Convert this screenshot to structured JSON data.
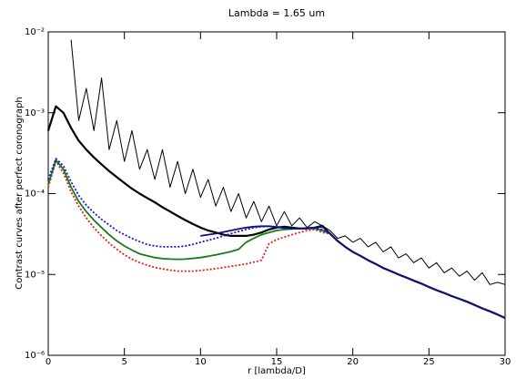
{
  "chart_data": {
    "type": "line",
    "title": "Lambda = 1.65 um",
    "xlabel": "r [lambda/D]",
    "ylabel": "Contrast curves after perfect coronograph",
    "log_y": true,
    "xlim": [
      0,
      30
    ],
    "xticks": [
      0,
      5,
      10,
      15,
      20,
      25,
      30
    ],
    "ylim": [
      1e-06,
      0.01
    ],
    "yticks": [
      {
        "value": 1e-06,
        "label": "10⁻⁶"
      },
      {
        "value": 1e-05,
        "label": "10⁻⁵"
      },
      {
        "value": 0.0001,
        "label": "10⁻⁴"
      },
      {
        "value": 0.001,
        "label": "10⁻³"
      },
      {
        "value": 0.01,
        "label": "10⁻²"
      }
    ],
    "x": [
      0,
      0.5,
      1,
      1.5,
      2,
      2.5,
      3,
      3.5,
      4,
      4.5,
      5,
      5.5,
      6,
      6.5,
      7,
      7.5,
      8,
      8.5,
      9,
      9.5,
      10,
      10.5,
      11,
      11.5,
      12,
      12.5,
      13,
      13.5,
      14,
      14.5,
      15,
      15.5,
      16,
      16.5,
      17,
      17.5,
      18,
      18.5,
      19,
      19.5,
      20,
      20.5,
      21,
      21.5,
      22,
      22.5,
      23,
      23.5,
      24,
      24.5,
      25,
      25.5,
      26,
      26.5,
      27,
      27.5,
      28,
      28.5,
      29,
      29.5,
      30
    ],
    "series": [
      {
        "color": "#000000",
        "width": 1,
        "dash": "solid",
        "values": [
          null,
          null,
          null,
          0.008,
          0.0008,
          0.002,
          0.0006,
          0.0027,
          0.00035,
          0.0008,
          0.00025,
          0.0006,
          0.0002,
          0.00035,
          0.00015,
          0.00035,
          0.00012,
          0.00025,
          0.0001,
          0.0002,
          9e-05,
          0.00015,
          7e-05,
          0.00012,
          6e-05,
          0.0001,
          5e-05,
          8e-05,
          4.5e-05,
          7e-05,
          4e-05,
          6e-05,
          4e-05,
          5e-05,
          3.8e-05,
          4.5e-05,
          4e-05,
          3.5e-05,
          2.8e-05,
          3e-05,
          2.5e-05,
          2.8e-05,
          2.2e-05,
          2.5e-05,
          1.9e-05,
          2.2e-05,
          1.6e-05,
          1.8e-05,
          1.4e-05,
          1.6e-05,
          1.2e-05,
          1.4e-05,
          1.05e-05,
          1.2e-05,
          9.5e-06,
          1.1e-05,
          8.5e-06,
          1.05e-05,
          7.5e-06,
          8e-06,
          7.5e-06
        ]
      },
      {
        "color": "#000000",
        "width": 2.2,
        "dash": "solid",
        "values": [
          0.0006,
          0.0012,
          0.001,
          0.00065,
          0.00045,
          0.00035,
          0.00028,
          0.00023,
          0.00019,
          0.00016,
          0.000135,
          0.000115,
          0.0001,
          8.8e-05,
          7.8e-05,
          6.8e-05,
          6e-05,
          5.3e-05,
          4.7e-05,
          4.2e-05,
          3.8e-05,
          3.5e-05,
          3.3e-05,
          3.1e-05,
          3e-05,
          3e-05,
          3e-05,
          3.1e-05,
          3.3e-05,
          3.6e-05,
          3.8e-05,
          3.9e-05,
          3.8e-05,
          3.7e-05,
          3.7e-05,
          3.8e-05,
          4e-05,
          3.2e-05,
          2.6e-05,
          2.2e-05,
          1.9e-05,
          1.7e-05,
          1.5e-05,
          1.35e-05,
          1.2e-05,
          1.1e-05,
          1e-05,
          9.2e-06,
          8.4e-06,
          7.7e-06,
          7e-06,
          6.4e-06,
          5.9e-06,
          5.4e-06,
          5e-06,
          4.6e-06,
          4.2e-06,
          3.8e-06,
          3.5e-06,
          3.2e-06,
          2.9e-06
        ]
      },
      {
        "color": "#e0201b",
        "width": 1.8,
        "dash": "dotted",
        "values": [
          0.00012,
          0.00025,
          0.00018,
          0.000105,
          7e-05,
          5e-05,
          3.8e-05,
          3e-05,
          2.45e-05,
          2.05e-05,
          1.75e-05,
          1.55e-05,
          1.4e-05,
          1.3e-05,
          1.22e-05,
          1.17e-05,
          1.13e-05,
          1.1e-05,
          1.1e-05,
          1.1e-05,
          1.12e-05,
          1.15e-05,
          1.18e-05,
          1.22e-05,
          1.26e-05,
          1.3e-05,
          1.35e-05,
          1.42e-05,
          1.5e-05,
          2.4e-05,
          2.7e-05,
          2.9e-05,
          3.1e-05,
          3.3e-05,
          3.5e-05,
          3.6e-05,
          3.3e-05,
          3.2e-05,
          2.6e-05,
          2.2e-05,
          1.9e-05,
          1.7e-05,
          1.5e-05,
          1.35e-05,
          1.2e-05,
          1.1e-05,
          1e-05,
          9.2e-06,
          8.4e-06,
          7.7e-06,
          7e-06,
          6.4e-06,
          5.9e-06,
          5.4e-06,
          5e-06,
          4.6e-06,
          4.2e-06,
          3.8e-06,
          3.5e-06,
          3.2e-06,
          2.9e-06
        ]
      },
      {
        "color": "#1a7a1a",
        "width": 1.8,
        "dash": "solid",
        "values": [
          0.00013,
          0.00026,
          0.0002,
          0.00012,
          8e-05,
          6e-05,
          4.7e-05,
          3.8e-05,
          3.1e-05,
          2.6e-05,
          2.25e-05,
          2e-05,
          1.8e-05,
          1.7e-05,
          1.62e-05,
          1.57e-05,
          1.55e-05,
          1.54e-05,
          1.55e-05,
          1.58e-05,
          1.62e-05,
          1.68e-05,
          1.75e-05,
          1.83e-05,
          1.92e-05,
          2.05e-05,
          2.5e-05,
          2.8e-05,
          3.1e-05,
          3.3e-05,
          3.5e-05,
          3.6e-05,
          3.65e-05,
          3.7e-05,
          3.7e-05,
          3.7e-05,
          3.5e-05,
          3.2e-05,
          2.6e-05,
          2.2e-05,
          1.9e-05,
          1.7e-05,
          1.5e-05,
          1.35e-05,
          1.2e-05,
          1.1e-05,
          1e-05,
          9.2e-06,
          8.4e-06,
          7.7e-06,
          7e-06,
          6.4e-06,
          5.9e-06,
          5.4e-06,
          5e-06,
          4.6e-06,
          4.2e-06,
          3.8e-06,
          3.5e-06,
          3.2e-06,
          2.9e-06
        ]
      },
      {
        "color": "#1515d0",
        "width": 1.8,
        "dash": "dotted",
        "values": [
          0.00015,
          0.00027,
          0.00022,
          0.00014,
          9.5e-05,
          7.2e-05,
          5.8e-05,
          4.8e-05,
          4.1e-05,
          3.5e-05,
          3.1e-05,
          2.8e-05,
          2.55e-05,
          2.35e-05,
          2.25e-05,
          2.2e-05,
          2.2e-05,
          2.2e-05,
          2.25e-05,
          2.35e-05,
          2.5e-05,
          2.65e-05,
          2.8e-05,
          3e-05,
          3.2e-05,
          3.4e-05,
          3.6e-05,
          3.8e-05,
          3.9e-05,
          3.95e-05,
          3.9e-05,
          3.8e-05,
          3.7e-05,
          3.7e-05,
          3.7e-05,
          3.75e-05,
          3.6e-05,
          3.2e-05,
          2.6e-05,
          2.2e-05,
          1.9e-05,
          1.7e-05,
          1.5e-05,
          1.35e-05,
          1.2e-05,
          1.1e-05,
          1e-05,
          9.2e-06,
          8.4e-06,
          7.7e-06,
          7e-06,
          6.4e-06,
          5.9e-06,
          5.4e-06,
          5e-06,
          4.6e-06,
          4.2e-06,
          3.8e-06,
          3.5e-06,
          3.2e-06,
          2.9e-06
        ]
      },
      {
        "color": "#10107a",
        "width": 1.8,
        "dash": "solid",
        "values": [
          null,
          null,
          null,
          null,
          null,
          null,
          null,
          null,
          null,
          null,
          null,
          null,
          null,
          null,
          null,
          null,
          null,
          null,
          null,
          null,
          3e-05,
          3.1e-05,
          3.2e-05,
          3.35e-05,
          3.5e-05,
          3.65e-05,
          3.8e-05,
          3.9e-05,
          3.95e-05,
          3.95e-05,
          3.85e-05,
          3.75e-05,
          3.7e-05,
          3.7e-05,
          3.75e-05,
          3.8e-05,
          3.9e-05,
          3.2e-05,
          2.6e-05,
          2.2e-05,
          1.9e-05,
          1.7e-05,
          1.5e-05,
          1.35e-05,
          1.2e-05,
          1.1e-05,
          1e-05,
          9.2e-06,
          8.4e-06,
          7.7e-06,
          7e-06,
          6.4e-06,
          5.9e-06,
          5.4e-06,
          5e-06,
          4.6e-06,
          4.2e-06,
          3.8e-06,
          3.5e-06,
          3.2e-06,
          2.9e-06
        ]
      }
    ]
  }
}
